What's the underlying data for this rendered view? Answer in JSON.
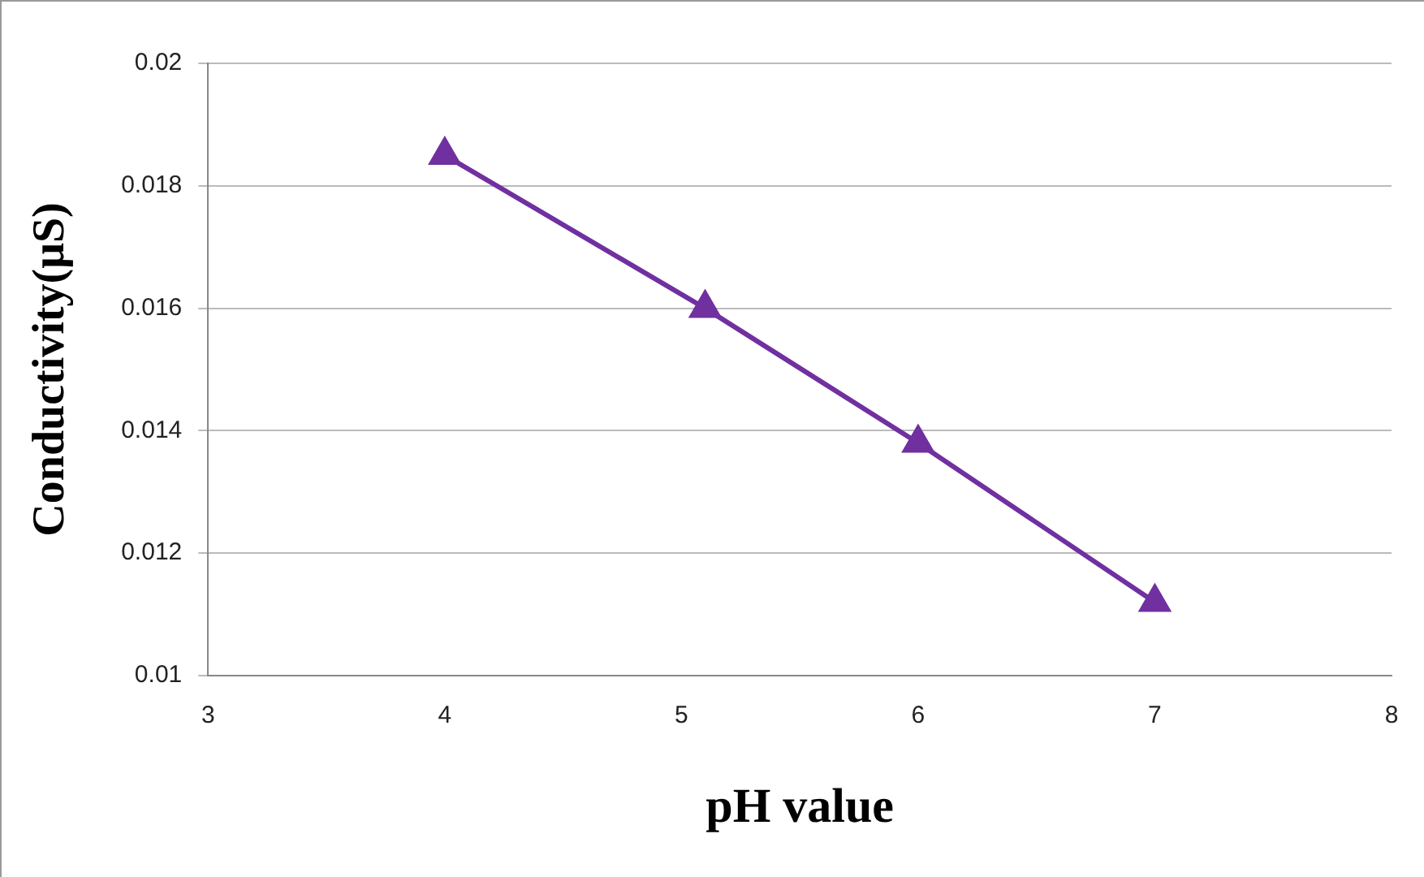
{
  "chart_data": {
    "type": "line",
    "xlabel": "pH value",
    "ylabel": "Conductivity(μS)",
    "series": [
      {
        "color": "#7030a0",
        "x": [
          4,
          5.1,
          6,
          7
        ],
        "values": [
          0.0185,
          0.016,
          0.0138,
          0.0112
        ]
      }
    ],
    "xlim": [
      3,
      8
    ],
    "xticks": [
      3,
      4,
      5,
      6,
      7,
      8
    ],
    "ylim": [
      0.01,
      0.02
    ],
    "yticks": [
      0.01,
      0.012,
      0.014,
      0.016,
      0.018,
      0.02
    ],
    "grid": "y",
    "legend": false,
    "marker": "triangle",
    "line_style": "solid"
  }
}
